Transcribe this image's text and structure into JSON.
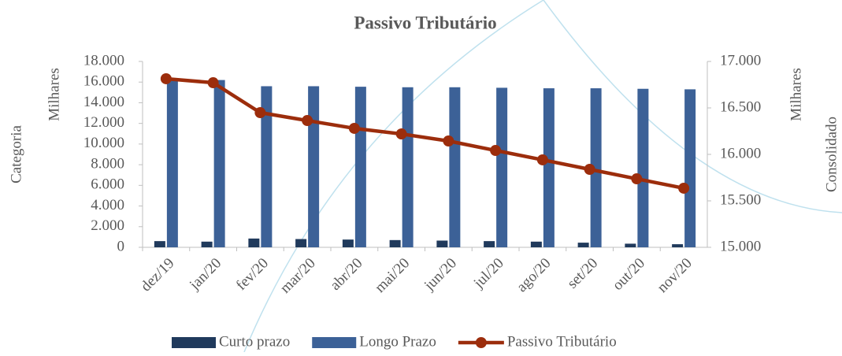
{
  "chart_data": {
    "type": "bar-line",
    "title": "Passivo Tributário",
    "categories": [
      "dez/19",
      "jan/20",
      "fev/20",
      "mar/20",
      "abr/20",
      "mai/20",
      "jun/20",
      "jul/20",
      "ago/20",
      "set/20",
      "out/20",
      "nov/20"
    ],
    "series": [
      {
        "name": "Curto prazo",
        "type": "bar",
        "color": "#203a5c",
        "values": [
          600,
          550,
          850,
          800,
          750,
          700,
          650,
          600,
          550,
          450,
          350,
          300
        ]
      },
      {
        "name": "Longo Prazo",
        "type": "bar",
        "color": "#3c6197",
        "values": [
          16300,
          16200,
          15600,
          15600,
          15550,
          15500,
          15500,
          15450,
          15400,
          15400,
          15350,
          15300
        ]
      },
      {
        "name": "Passivo Tributário",
        "type": "line",
        "axis": "y2",
        "color": "#9c2d0c",
        "values": [
          16814,
          16771,
          16449,
          16364,
          16280,
          16220,
          16144,
          16042,
          15941,
          15839,
          15737,
          15636
        ]
      }
    ],
    "ylim": [
      0,
      18000
    ],
    "yticks": [
      0,
      {
        "value": 2000,
        "label": "2.000"
      },
      {
        "value": 4000,
        "label": "4.000"
      },
      {
        "value": 6000,
        "label": "6.000"
      },
      {
        "value": 8000,
        "label": "8.000"
      },
      {
        "value": 10000,
        "label": "10.000"
      },
      {
        "value": 12000,
        "label": "12.000"
      },
      {
        "value": 14000,
        "label": "14.000"
      },
      {
        "value": 16000,
        "label": "16.000"
      },
      {
        "value": 18000,
        "label": "18.000"
      }
    ],
    "y2lim": [
      15000,
      17000
    ],
    "y2ticks": [
      {
        "value": 15000,
        "label": "15.000"
      },
      {
        "value": 15500,
        "label": "15.500"
      },
      {
        "value": 16000,
        "label": "16.000"
      },
      {
        "value": 16500,
        "label": "16.500"
      },
      {
        "value": 17000,
        "label": "17.000"
      }
    ],
    "x_axis_title": "Categoria",
    "y_axis_title": "Milhares",
    "y2_axis_title": "Milhares",
    "y2_axis_title_outer": "Consolidado",
    "legend": "bottom"
  }
}
